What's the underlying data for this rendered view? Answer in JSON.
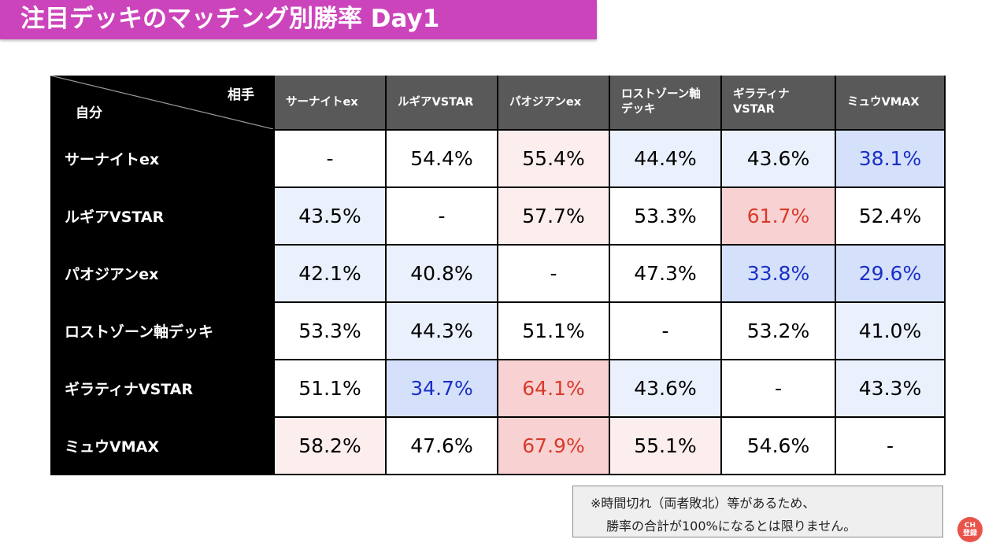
{
  "title": "注目デッキのマッチング別勝率 Day1",
  "corner": {
    "opponent_label": "相手",
    "self_label": "自分"
  },
  "note": {
    "line1": "※時間切れ（両者敗北）等があるため、",
    "line2": "勝率の合計が100%になるとは限りません。"
  },
  "badge": {
    "line1": "CH",
    "line2": "登録"
  },
  "colors": {
    "title_bg": "#cc44bb",
    "header_bg": "#595959",
    "row_header_bg": "#000000",
    "high_text": "#d93a2b",
    "low_text": "#1a2fc4",
    "strong_red_bg": "#f8d2d2",
    "light_red_bg": "#fdeeee",
    "strong_blue_bg": "#d5e1fb",
    "light_blue_bg": "#eaf1fc"
  },
  "chart_data": {
    "type": "table",
    "columns": [
      "サーナイトex",
      "ルギアVSTAR",
      "パオジアンex",
      "ロストゾーン軸\nデッキ",
      "ギラティナ\nVSTAR",
      "ミュウVMAX"
    ],
    "rows": [
      {
        "label": "サーナイトex",
        "values": [
          "-",
          "54.4%",
          "55.4%",
          "44.4%",
          "43.6%",
          "38.1%"
        ]
      },
      {
        "label": "ルギアVSTAR",
        "values": [
          "43.5%",
          "-",
          "57.7%",
          "53.3%",
          "61.7%",
          "52.4%"
        ]
      },
      {
        "label": "パオジアンex",
        "values": [
          "42.1%",
          "40.8%",
          "-",
          "47.3%",
          "33.8%",
          "29.6%"
        ]
      },
      {
        "label": "ロストゾーン軸デッキ",
        "values": [
          "53.3%",
          "44.3%",
          "51.1%",
          "-",
          "53.2%",
          "41.0%"
        ]
      },
      {
        "label": "ギラティナVSTAR",
        "values": [
          "51.1%",
          "34.7%",
          "64.1%",
          "43.6%",
          "-",
          "43.3%"
        ]
      },
      {
        "label": "ミュウVMAX",
        "values": [
          "58.2%",
          "47.6%",
          "67.9%",
          "55.1%",
          "54.6%",
          "-"
        ]
      }
    ]
  }
}
